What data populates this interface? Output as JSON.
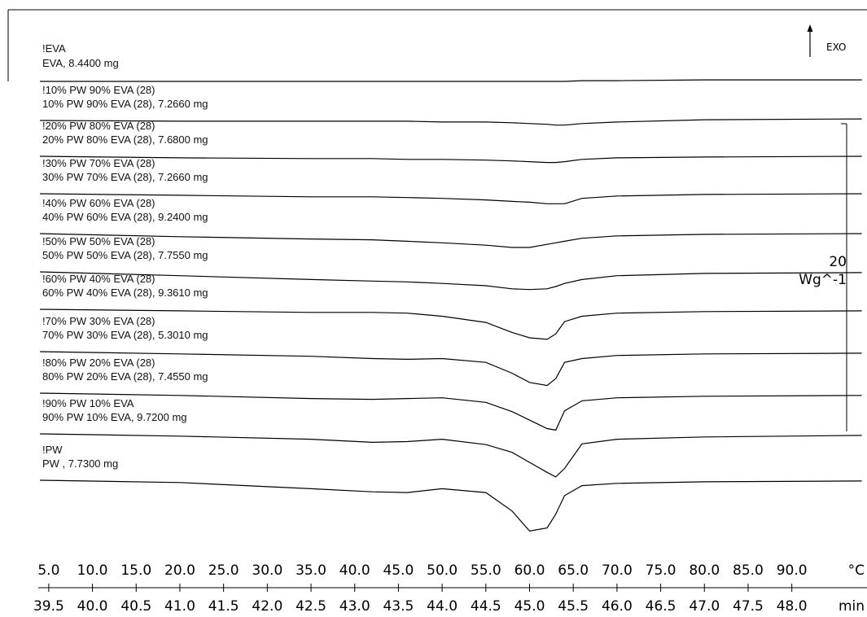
{
  "chart_data": {
    "type": "line",
    "color": "#000000",
    "exo_label": "EXO",
    "scale_bar": 20,
    "scale_bar_unit": "Wg^-1",
    "xlabel": "°C",
    "x2label": "min",
    "xlim": [
      3.8,
      98.6
    ],
    "x2lim": [
      39.38,
      48.86
    ],
    "xticks": [
      {
        "value": 5,
        "label": "5.0"
      },
      {
        "value": 10,
        "label": "10.0"
      },
      {
        "value": 15,
        "label": "15.0"
      },
      {
        "value": 20,
        "label": "20.0"
      },
      {
        "value": 25,
        "label": "25.0"
      },
      {
        "value": 30,
        "label": "30.0"
      },
      {
        "value": 35,
        "label": "35.0"
      },
      {
        "value": 40,
        "label": "40.0"
      },
      {
        "value": 45,
        "label": "45.0"
      },
      {
        "value": 50,
        "label": "50.0"
      },
      {
        "value": 55,
        "label": "55.0"
      },
      {
        "value": 60,
        "label": "60.0"
      },
      {
        "value": 65,
        "label": "65.0"
      },
      {
        "value": 70,
        "label": "70.0"
      },
      {
        "value": 75,
        "label": "75.0"
      },
      {
        "value": 80,
        "label": "80.0"
      },
      {
        "value": 85,
        "label": "85.0"
      },
      {
        "value": 90,
        "label": "90.0"
      }
    ],
    "x2ticks": [
      39.5,
      {
        "value": 40,
        "label": "40.0"
      },
      40.5,
      {
        "value": 41,
        "label": "41.0"
      },
      41.5,
      {
        "value": 42,
        "label": "42.0"
      },
      42.5,
      {
        "value": 43,
        "label": "43.0"
      },
      43.5,
      {
        "value": 44,
        "label": "44.0"
      },
      44.5,
      {
        "value": 45,
        "label": "45.0"
      },
      45.5,
      {
        "value": 46,
        "label": "46.0"
      },
      46.5,
      {
        "value": 47,
        "label": "47.0"
      },
      47.5,
      {
        "value": 48,
        "label": "48.0"
      }
    ],
    "x": [
      4,
      20,
      35,
      42,
      46,
      50,
      55,
      58,
      60,
      62,
      63,
      64,
      66,
      70,
      80,
      98
    ],
    "series": [
      {
        "name": "!EVA",
        "label": "EVA, 8.4400 mg",
        "values": [
          0,
          0,
          0,
          0,
          0,
          0,
          0,
          0,
          0,
          0,
          0,
          0,
          0.05,
          0.05,
          0.1,
          0.1
        ]
      },
      {
        "name": "!10% PW 90% EVA (28)",
        "label": "10% PW 90% EVA (28), 7.2660 mg",
        "values": [
          0,
          -0.05,
          -0.05,
          -0.05,
          -0.05,
          -0.1,
          -0.1,
          -0.15,
          -0.2,
          -0.25,
          -0.3,
          -0.3,
          -0.2,
          -0.1,
          0.05,
          0.1
        ]
      },
      {
        "name": "!20% PW 80% EVA (28)",
        "label": "20% PW 80% EVA (28), 7.6800 mg",
        "values": [
          0,
          -0.1,
          -0.15,
          -0.15,
          -0.2,
          -0.2,
          -0.25,
          -0.3,
          -0.35,
          -0.4,
          -0.4,
          -0.35,
          -0.2,
          -0.1,
          -0.05,
          0
        ]
      },
      {
        "name": "!30% PW 70% EVA (28)",
        "label": "30% PW 70% EVA (28), 7.2660 mg",
        "values": [
          0,
          -0.1,
          -0.2,
          -0.2,
          -0.25,
          -0.3,
          -0.4,
          -0.5,
          -0.55,
          -0.65,
          -0.65,
          -0.65,
          -0.3,
          -0.15,
          -0.05,
          0
        ]
      },
      {
        "name": "!40% PW 60% EVA (28)",
        "label": "40% PW 60% EVA (28), 9.2400 mg",
        "values": [
          0,
          -0.2,
          -0.35,
          -0.4,
          -0.5,
          -0.6,
          -0.75,
          -0.9,
          -0.9,
          -0.7,
          -0.6,
          -0.5,
          -0.3,
          -0.15,
          -0.05,
          0
        ]
      },
      {
        "name": "!50% PW 50% EVA (28)",
        "label": "50% PW 50% EVA (28), 7.7550 mg",
        "values": [
          0,
          -0.25,
          -0.5,
          -0.6,
          -0.65,
          -0.75,
          -0.9,
          -1.1,
          -1.15,
          -1.1,
          -0.95,
          -0.75,
          -0.5,
          -0.25,
          -0.1,
          -0.05
        ]
      },
      {
        "name": "!60% PW 40% EVA (28)",
        "label": "60% PW 40% EVA (28), 9.3610 mg",
        "values": [
          0,
          -0.1,
          -0.2,
          -0.2,
          -0.25,
          -0.45,
          -0.85,
          -1.5,
          -1.85,
          -1.95,
          -1.6,
          -0.8,
          -0.45,
          -0.25,
          -0.15,
          -0.1
        ]
      },
      {
        "name": "!70% PW 30% EVA (28)",
        "label": "70% PW 30% EVA (28), 5.3010 mg",
        "values": [
          0,
          -0.15,
          -0.3,
          -0.45,
          -0.5,
          -0.45,
          -0.7,
          -1.4,
          -2.0,
          -2.2,
          -1.75,
          -0.7,
          -0.45,
          -0.25,
          -0.15,
          -0.1
        ]
      },
      {
        "name": "!80% PW 20% EVA (28)",
        "label": "80% PW 20% EVA (28), 7.4550 mg",
        "values": [
          0,
          -0.15,
          -0.35,
          -0.4,
          -0.35,
          -0.3,
          -0.6,
          -1.2,
          -1.75,
          -2.3,
          -2.4,
          -1.15,
          -0.5,
          -0.3,
          -0.2,
          -0.15
        ]
      },
      {
        "name": "!90% PW 10% EVA",
        "label": "90% PW 10% EVA, 9.7200 mg",
        "values": [
          0,
          -0.15,
          -0.35,
          -0.55,
          -0.5,
          -0.35,
          -0.7,
          -1.2,
          -1.85,
          -2.5,
          -2.8,
          -2.25,
          -0.65,
          -0.35,
          -0.2,
          -0.1
        ]
      },
      {
        "name": "!PW",
        "label": "PW , 7.7300 mg",
        "values": [
          0,
          -0.15,
          -0.55,
          -0.75,
          -0.8,
          -0.55,
          -0.8,
          -2.0,
          -3.3,
          -3.1,
          -2.2,
          -1.0,
          -0.35,
          -0.2,
          -0.1,
          -0.05
        ]
      }
    ]
  }
}
